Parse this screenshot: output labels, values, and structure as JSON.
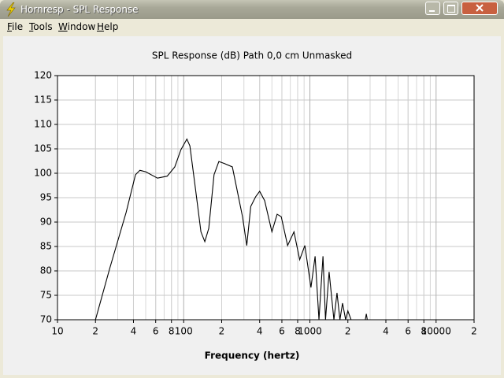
{
  "window": {
    "title": "Hornresp - SPL Response"
  },
  "menu": [
    "File",
    "Tools",
    "Window",
    "Help"
  ],
  "chart_data": {
    "type": "line",
    "title": "SPL Response (dB)   Path 0,0 cm   Unmasked",
    "x_label": "Frequency (hertz)",
    "x": [
      20,
      26,
      35,
      41.5,
      45,
      50,
      62,
      74,
      85,
      95,
      106,
      112,
      124,
      137,
      147,
      158,
      174,
      190,
      210,
      243,
      260,
      293,
      316,
      340,
      372,
      400,
      438,
      500,
      550,
      593,
      666,
      748,
      830,
      912,
      1020,
      1100,
      1180,
      1270,
      1330,
      1420,
      1550,
      1640,
      1730,
      1815,
      1920,
      2000,
      2120,
      2500,
      2750,
      2800,
      2850
    ],
    "values": [
      70,
      80.6,
      92,
      99.7,
      100.6,
      100.3,
      99,
      99.4,
      101.3,
      104.8,
      107,
      105.6,
      96.8,
      88,
      86,
      88.7,
      99.7,
      102.4,
      102,
      101.3,
      97.6,
      91,
      85.2,
      93.2,
      95.2,
      96.3,
      94.4,
      88,
      91.6,
      91.1,
      85.2,
      88,
      82.3,
      85.2,
      76.6,
      83,
      70,
      83,
      70,
      79.8,
      70,
      75.5,
      70,
      73.4,
      70,
      71.8,
      70,
      null,
      70,
      71.2,
      70
    ],
    "color": "#000000",
    "xscale": "log",
    "xlim": [
      10,
      20000
    ],
    "ylim": [
      70,
      120
    ],
    "xticks": [
      10,
      {
        "value": 20,
        "label": "2"
      },
      {
        "value": 40,
        "label": "4"
      },
      {
        "value": 60,
        "label": "6"
      },
      {
        "value": 80,
        "label": "8"
      },
      100,
      {
        "value": 200,
        "label": "2"
      },
      {
        "value": 400,
        "label": "4"
      },
      {
        "value": 600,
        "label": "6"
      },
      {
        "value": 800,
        "label": "8"
      },
      1000,
      {
        "value": 2000,
        "label": "2"
      },
      {
        "value": 4000,
        "label": "4"
      },
      {
        "value": 6000,
        "label": "6"
      },
      {
        "value": 8000,
        "label": "8"
      },
      10000,
      {
        "value": 20000,
        "label": "2"
      }
    ],
    "yticks": [
      70,
      75,
      80,
      85,
      90,
      95,
      100,
      105,
      110,
      115,
      120
    ],
    "grid": true,
    "minor_grid": true
  }
}
